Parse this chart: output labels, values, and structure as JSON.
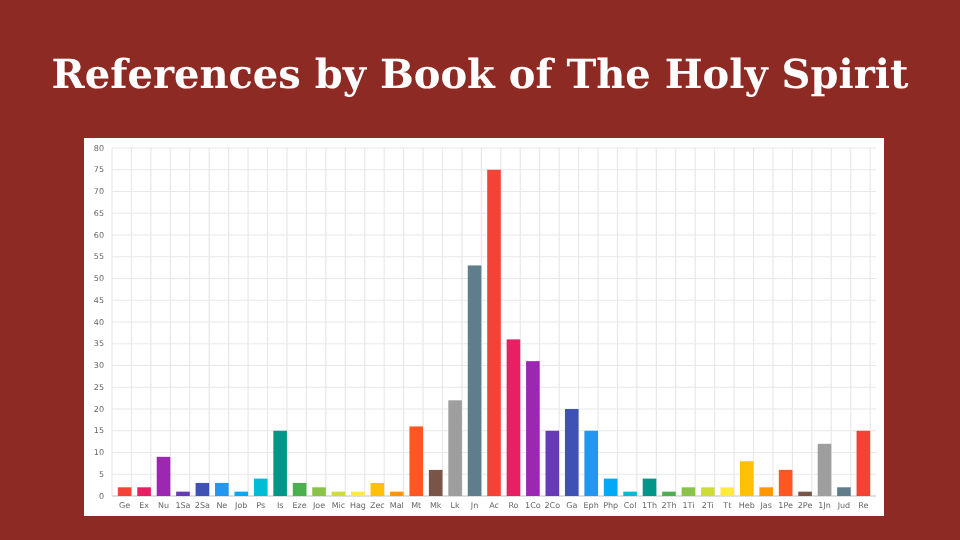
{
  "chart_data": {
    "type": "bar",
    "title": "References by Book of The Holy Spirit",
    "categories": [
      "Ge",
      "Ex",
      "Nu",
      "1Sa",
      "2Sa",
      "Ne",
      "Job",
      "Ps",
      "Is",
      "Eze",
      "Joe",
      "Mic",
      "Hag",
      "Zec",
      "Mal",
      "Mt",
      "Mk",
      "Lk",
      "Jn",
      "Ac",
      "Ro",
      "1Co",
      "2Co",
      "Ga",
      "Eph",
      "Php",
      "Col",
      "1Th",
      "2Th",
      "1Ti",
      "2Ti",
      "Tt",
      "Heb",
      "Jas",
      "1Pe",
      "2Pe",
      "1Jn",
      "Jud",
      "Re"
    ],
    "values": [
      2,
      2,
      9,
      1,
      3,
      3,
      1,
      4,
      15,
      3,
      2,
      1,
      1,
      3,
      1,
      16,
      6,
      22,
      53,
      75,
      36,
      31,
      15,
      20,
      15,
      4,
      1,
      4,
      1,
      2,
      2,
      2,
      8,
      2,
      6,
      1,
      12,
      2,
      15
    ],
    "colors": [
      "#f44336",
      "#e91e63",
      "#9c27b0",
      "#673ab7",
      "#3f51b5",
      "#2196f3",
      "#03a9f4",
      "#00bcd4",
      "#009688",
      "#4caf50",
      "#8bc34a",
      "#cddc39",
      "#ffeb3b",
      "#ffc107",
      "#ff9800",
      "#ff5722",
      "#795548",
      "#9e9e9e",
      "#607d8b",
      "#f44336",
      "#e91e63",
      "#9c27b0",
      "#673ab7",
      "#3f51b5",
      "#2196f3",
      "#03a9f4",
      "#00bcd4",
      "#009688",
      "#4caf50",
      "#8bc34a",
      "#cddc39",
      "#ffeb3b",
      "#ffc107",
      "#ff9800",
      "#ff5722",
      "#795548",
      "#9e9e9e",
      "#607d8b",
      "#f44336"
    ],
    "ylim": [
      0,
      80
    ],
    "yticks": [
      0,
      5,
      10,
      15,
      20,
      25,
      30,
      35,
      40,
      45,
      50,
      55,
      60,
      65,
      70,
      75,
      80
    ],
    "grid": true
  }
}
